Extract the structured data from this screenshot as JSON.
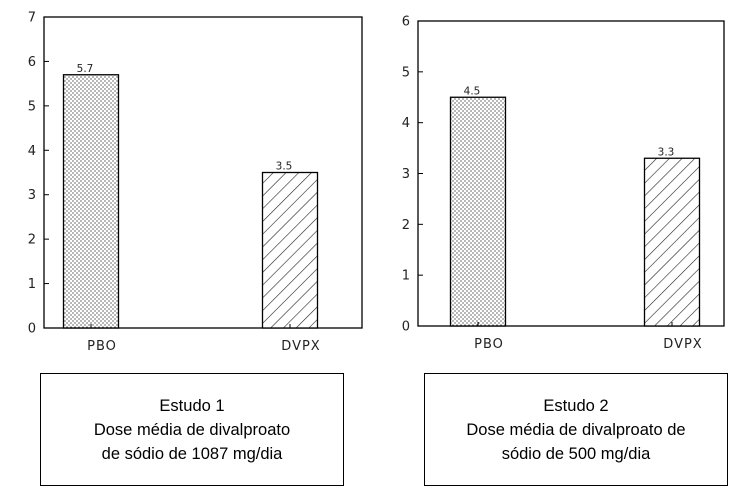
{
  "chart_data": [
    {
      "type": "bar",
      "categories": [
        "PBO",
        "DVPX"
      ],
      "values": [
        5.7,
        3.5
      ],
      "data_labels": [
        "5.7",
        "3.5"
      ],
      "ylim": [
        0,
        7
      ],
      "yticks": [
        0,
        1,
        2,
        3,
        4,
        5,
        6,
        7
      ],
      "bar_patterns": [
        "dots",
        "diagonal-hatch"
      ],
      "grid": false,
      "caption": [
        "Estudo 1",
        "Dose média de divalproato",
        "de sódio de 1087 mg/dia"
      ]
    },
    {
      "type": "bar",
      "categories": [
        "PBO",
        "DVPX"
      ],
      "values": [
        4.5,
        3.3
      ],
      "data_labels": [
        "4.5",
        "3.3"
      ],
      "ylim": [
        0,
        6
      ],
      "yticks": [
        0,
        1,
        2,
        3,
        4,
        5,
        6
      ],
      "bar_patterns": [
        "dots",
        "diagonal-hatch"
      ],
      "grid": false,
      "caption": [
        "Estudo 2",
        "Dose média de divalproato de",
        "sódio de 500 mg/dia"
      ]
    }
  ]
}
